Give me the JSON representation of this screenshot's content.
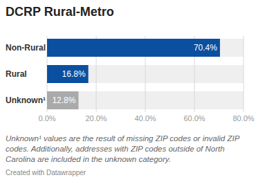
{
  "chart_data": {
    "type": "bar",
    "title": "DCRP Rural-Metro",
    "orientation": "horizontal",
    "categories": [
      "Non-Rural",
      "Rural",
      "Unknown¹"
    ],
    "values": [
      70.4,
      16.8,
      12.8
    ],
    "value_labels": [
      "70.4%",
      "16.8%",
      "12.8%"
    ],
    "colors": [
      "#0b4fa0",
      "#0b4fa0",
      "#aaaaaa"
    ],
    "xlim": [
      0,
      80
    ],
    "xticks": [
      {
        "value": 0,
        "label": "0.0%"
      },
      {
        "value": 20,
        "label": "20.0%"
      },
      {
        "value": 40,
        "label": "40.0%"
      },
      {
        "value": 60,
        "label": "60.0%"
      },
      {
        "value": 80,
        "label": "80.0%"
      }
    ],
    "grid": true,
    "data_labels": true,
    "notes": "Unknown¹ values are the result of missing ZIP codes or invalid ZIP codes. Additionally, addresses with ZIP codes outside of North Carolina are included in the unknown category.",
    "credit": "Created with Datawrapper"
  }
}
